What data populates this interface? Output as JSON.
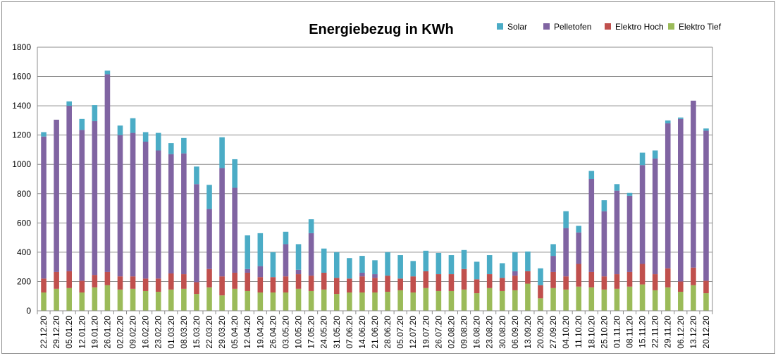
{
  "chart_data": {
    "type": "bar",
    "stacked": true,
    "title": "Energiebezug in KWh",
    "xlabel": "",
    "ylabel": "",
    "ylim": [
      0,
      1800
    ],
    "yticks": [
      0,
      200,
      400,
      600,
      800,
      1000,
      1200,
      1400,
      1600,
      1800
    ],
    "grid": "horizontal",
    "legend_position": "top-right",
    "categories": [
      "22.12.20",
      "29.12.20",
      "05.01.20",
      "12.01.20",
      "19.01.20",
      "26.01.20",
      "02.02.20",
      "09.02.20",
      "16.02.20",
      "23.02.20",
      "01.03.20",
      "08.03.20",
      "15.03.20",
      "22.03.20",
      "29.03.20",
      "05.04.20",
      "12.04.20",
      "19.04.20",
      "26.04.20",
      "03.05.20",
      "10.05.20",
      "17.05.20",
      "24.05.20",
      "31.05.20",
      "07.06.20",
      "14.06.20",
      "21.06.20",
      "28.06.20",
      "05.07.20",
      "12.07.20",
      "19.07.20",
      "26.07.20",
      "02.08.20",
      "09.08.20",
      "16.08.20",
      "23.08.20",
      "30.08.20",
      "06.09.20",
      "13.09.20",
      "20.09.20",
      "27.09.20",
      "04.10.20",
      "11.10.20",
      "18.10.20",
      "25.10.20",
      "01.11.20",
      "08.11.20",
      "15.11.20",
      "22.11.20",
      "29.11.20",
      "06.12.20",
      "13.12.20",
      "20.12.20"
    ],
    "series": [
      {
        "name": "Elektro Tief",
        "color": "#9bbb59",
        "values": [
          125,
          150,
          155,
          125,
          160,
          175,
          145,
          150,
          135,
          130,
          145,
          150,
          115,
          160,
          105,
          150,
          135,
          125,
          125,
          125,
          150,
          135,
          145,
          115,
          125,
          125,
          125,
          130,
          140,
          125,
          155,
          135,
          135,
          145,
          120,
          155,
          135,
          140,
          185,
          85,
          155,
          145,
          165,
          160,
          145,
          150,
          165,
          180,
          140,
          160,
          130,
          175,
          120
        ]
      },
      {
        "name": "Elektro Hoch",
        "color": "#c0504d",
        "values": [
          95,
          115,
          115,
          80,
          85,
          90,
          90,
          85,
          85,
          90,
          110,
          100,
          80,
          125,
          130,
          110,
          125,
          105,
          105,
          110,
          100,
          105,
          115,
          110,
          95,
          110,
          100,
          110,
          80,
          110,
          115,
          115,
          115,
          140,
          95,
          95,
          90,
          100,
          85,
          90,
          110,
          90,
          155,
          105,
          90,
          100,
          100,
          140,
          110,
          130,
          70,
          120,
          85
        ]
      },
      {
        "name": "Pelletofen",
        "color": "#8064a2",
        "values": [
          970,
          1040,
          1130,
          1030,
          1050,
          1350,
          965,
          980,
          935,
          875,
          815,
          825,
          670,
          410,
          740,
          580,
          25,
          75,
          0,
          220,
          30,
          290,
          0,
          0,
          0,
          25,
          25,
          0,
          0,
          0,
          0,
          0,
          0,
          0,
          0,
          0,
          0,
          30,
          0,
          0,
          110,
          330,
          215,
          635,
          445,
          570,
          520,
          675,
          790,
          990,
          1110,
          1140,
          1025
        ]
      },
      {
        "name": "Solar",
        "color": "#4bacc6",
        "values": [
          30,
          0,
          30,
          75,
          110,
          25,
          65,
          100,
          65,
          120,
          75,
          105,
          120,
          165,
          210,
          195,
          230,
          225,
          170,
          85,
          175,
          95,
          165,
          175,
          140,
          115,
          95,
          160,
          160,
          105,
          140,
          145,
          130,
          130,
          120,
          130,
          100,
          130,
          135,
          115,
          80,
          115,
          45,
          55,
          75,
          45,
          20,
          85,
          55,
          20,
          10,
          0,
          15
        ]
      }
    ]
  }
}
